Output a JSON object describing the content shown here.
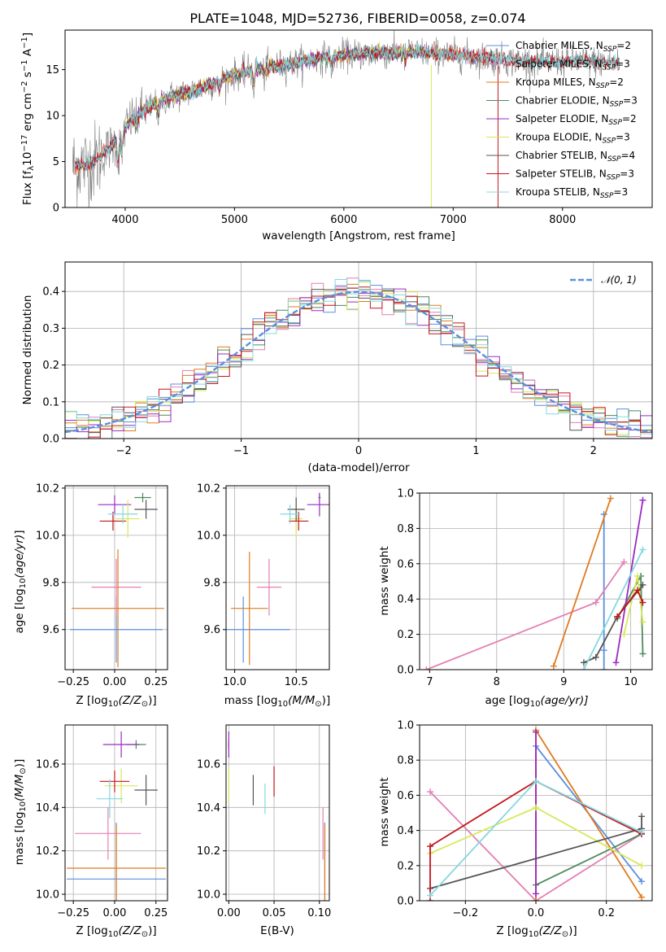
{
  "figure_title": "PLATE=1048, MJD=52736, FIBERID=0058, z=0.074",
  "colors": {
    "Chabrier MILES": "#5b8fde",
    "Salpeter MILES": "#e47fb3",
    "Kroupa MILES": "#e07b1e",
    "Chabrier ELODIE": "#4f8a5b",
    "Salpeter ELODIE": "#9a2bc0",
    "Kroupa ELODIE": "#d7e85a",
    "Chabrier STELIB": "#555555",
    "Salpeter STELIB": "#c3161c",
    "Kroupa STELIB": "#84d8e0",
    "data": "#7f7f7f",
    "gaussian": "#5b8fde",
    "grid": "#b0b0b0"
  },
  "chart_data": [
    {
      "id": "spectrum",
      "type": "line",
      "title": "PLATE=1048, MJD=52736, FIBERID=0058, z=0.074",
      "xlabel": "wavelength [Angstrom, rest frame]",
      "ylabel": "Flux [f",
      "ylabel_sub": "λ",
      "ylabel_rest": "10",
      "ylabel_exp": "−17",
      "ylabel_tail": " erg cm",
      "ylabel_exp2": "−2",
      "ylabel_tail2": " s",
      "ylabel_exp3": "−1",
      "ylabel_tail3": " A",
      "ylabel_exp4": "−1",
      "ylabel_end": "]",
      "xlim": [
        3450,
        8820
      ],
      "ylim": [
        0,
        19.3
      ],
      "xticks": [
        4000,
        5000,
        6000,
        7000,
        8000
      ],
      "yticks": [
        0,
        5,
        10,
        15
      ],
      "grid": false,
      "legend_position": "top-right",
      "data_range": [
        3520,
        8520
      ],
      "continuum_knots": [
        [
          3520,
          4.5
        ],
        [
          3700,
          4.8
        ],
        [
          3900,
          7.0
        ],
        [
          4050,
          9.5
        ],
        [
          4200,
          10.8
        ],
        [
          4400,
          12.0
        ],
        [
          4600,
          12.6
        ],
        [
          4800,
          13.5
        ],
        [
          5000,
          14.5
        ],
        [
          5200,
          15.0
        ],
        [
          5500,
          15.6
        ],
        [
          5800,
          16.3
        ],
        [
          6000,
          16.6
        ],
        [
          6300,
          16.8
        ],
        [
          6600,
          16.9
        ],
        [
          6900,
          16.7
        ],
        [
          7200,
          16.4
        ],
        [
          7500,
          16.0
        ],
        [
          7800,
          15.8
        ],
        [
          8100,
          15.9
        ],
        [
          8400,
          15.8
        ],
        [
          8520,
          15.8
        ]
      ],
      "series": [
        {
          "name": "Chabrier MILES",
          "label_prefix": "Chabrier MILES, N",
          "label_sub": "SSP",
          "label_suffix": "=2"
        },
        {
          "name": "Salpeter MILES",
          "label_prefix": "Salpeter MILES, N",
          "label_sub": "SSP",
          "label_suffix": "=3"
        },
        {
          "name": "Kroupa MILES",
          "label_prefix": "Kroupa MILES, N",
          "label_sub": "SSP",
          "label_suffix": "=2"
        },
        {
          "name": "Chabrier ELODIE",
          "label_prefix": "Chabrier ELODIE, N",
          "label_sub": "SSP",
          "label_suffix": "=3"
        },
        {
          "name": "Salpeter ELODIE",
          "label_prefix": "Salpeter ELODIE, N",
          "label_sub": "SSP",
          "label_suffix": "=2"
        },
        {
          "name": "Kroupa ELODIE",
          "label_prefix": "Kroupa ELODIE, N",
          "label_sub": "SSP",
          "label_suffix": "=3"
        },
        {
          "name": "Chabrier STELIB",
          "label_prefix": "Chabrier STELIB, N",
          "label_sub": "SSP",
          "label_suffix": "=4"
        },
        {
          "name": "Salpeter STELIB",
          "label_prefix": "Salpeter STELIB, N",
          "label_sub": "SSP",
          "label_suffix": "=3"
        },
        {
          "name": "Kroupa STELIB",
          "label_prefix": "Kroupa STELIB, N",
          "label_sub": "SSP",
          "label_suffix": "=3"
        }
      ],
      "model_ranges": {
        "MILES": [
          3540,
          7410
        ],
        "ELODIE": [
          3900,
          6800
        ],
        "STELIB": [
          3540,
          8520
        ]
      }
    },
    {
      "id": "residuals",
      "type": "bar",
      "xlabel": "(data-model)/error",
      "ylabel": "Normed distribution",
      "xlim": [
        -2.5,
        2.5
      ],
      "ylim": [
        0,
        0.48
      ],
      "xticks": [
        -2,
        -1,
        0,
        1,
        2
      ],
      "ytick_values": [
        0.0,
        0.1,
        0.2,
        0.3,
        0.4
      ],
      "ytick_labels": [
        "0.0",
        "0.1",
        "0.2",
        "0.3",
        "0.4"
      ],
      "xtick_labels": [
        "−2",
        "−1",
        "0",
        "1",
        "2"
      ],
      "grid": true,
      "bin_width": 0.1,
      "legend": "𝒩(0, 1)",
      "legend_position": "top-right"
    },
    {
      "id": "age_vs_Z",
      "type": "scatter",
      "xlabel": "Z [log",
      "xlabel_sub": "10",
      "xlabel_rest": "(Z/Z",
      "xlabel_sub2": "⊙",
      "xlabel_end": ")]",
      "ylabel": "age  [log10(age/yr)]",
      "xlim": [
        -0.3,
        0.32
      ],
      "ylim": [
        9.43,
        10.21
      ],
      "xticks": [
        -0.25,
        0,
        0.25
      ],
      "xtick_labels": [
        "−0.25",
        "0.00",
        "0.25"
      ],
      "yticks": [
        9.6,
        9.8,
        10.0,
        10.2
      ],
      "ytick_labels": [
        "9.6",
        "9.8",
        "10.0",
        "10.2"
      ],
      "grid": true,
      "points": [
        {
          "series": "Chabrier MILES",
          "x": 0.01,
          "xerr": 0.28,
          "y": 9.6,
          "yerr": 0.14
        },
        {
          "series": "Salpeter MILES",
          "x": 0.01,
          "xerr": 0.15,
          "y": 9.78,
          "yerr": 0.12
        },
        {
          "series": "Kroupa MILES",
          "x": 0.02,
          "xerr": 0.28,
          "y": 9.69,
          "yerr": 0.25
        },
        {
          "series": "Chabrier ELODIE",
          "x": 0.17,
          "xerr": 0.05,
          "y": 10.16,
          "yerr": 0.02
        },
        {
          "series": "Salpeter ELODIE",
          "x": 0.0,
          "xerr": 0.1,
          "y": 10.13,
          "yerr": 0.04
        },
        {
          "series": "Kroupa ELODIE",
          "x": 0.08,
          "xerr": 0.07,
          "y": 10.07,
          "yerr": 0.08
        },
        {
          "series": "Chabrier STELIB",
          "x": 0.19,
          "xerr": 0.07,
          "y": 10.11,
          "yerr": 0.04
        },
        {
          "series": "Salpeter STELIB",
          "x": -0.01,
          "xerr": 0.08,
          "y": 10.06,
          "yerr": 0.04
        },
        {
          "series": "Kroupa STELIB",
          "x": 0.05,
          "xerr": 0.09,
          "y": 10.09,
          "yerr": 0.04
        }
      ]
    },
    {
      "id": "age_vs_mass",
      "type": "scatter",
      "xlabel": "mass [log",
      "xlabel_sub": "10",
      "xlabel_rest": "(M/M",
      "xlabel_sub2": "⊙",
      "xlabel_end": ")]",
      "xlim": [
        9.93,
        10.77
      ],
      "ylim": [
        9.43,
        10.21
      ],
      "xticks": [
        10.0,
        10.5
      ],
      "xtick_labels": [
        "10.0",
        "10.5"
      ],
      "yticks": [
        9.6,
        9.8,
        10.0,
        10.2
      ],
      "ytick_labels": [
        "9.6",
        "9.8",
        "10.0",
        "10.2"
      ],
      "grid": true,
      "points": [
        {
          "series": "Chabrier MILES",
          "x": 10.07,
          "xerr": 0.38,
          "y": 9.6,
          "yerr": 0.14
        },
        {
          "series": "Salpeter MILES",
          "x": 10.28,
          "xerr": 0.1,
          "y": 9.78,
          "yerr": 0.12
        },
        {
          "series": "Kroupa MILES",
          "x": 10.12,
          "xerr": 0.15,
          "y": 9.69,
          "yerr": 0.24
        },
        {
          "series": "Chabrier ELODIE",
          "x": 10.69,
          "xerr": 0.01,
          "y": 10.16,
          "yerr": 0.02
        },
        {
          "series": "Salpeter ELODIE",
          "x": 10.69,
          "xerr": 0.1,
          "y": 10.13,
          "yerr": 0.05
        },
        {
          "series": "Kroupa ELODIE",
          "x": 10.5,
          "xerr": 0.05,
          "y": 10.07,
          "yerr": 0.08
        },
        {
          "series": "Chabrier STELIB",
          "x": 10.5,
          "xerr": 0.07,
          "y": 10.11,
          "yerr": 0.05
        },
        {
          "series": "Salpeter STELIB",
          "x": 10.52,
          "xerr": 0.08,
          "y": 10.06,
          "yerr": 0.04
        },
        {
          "series": "Kroupa STELIB",
          "x": 10.45,
          "xerr": 0.08,
          "y": 10.09,
          "yerr": 0.04
        }
      ]
    },
    {
      "id": "cumulative_age",
      "type": "line",
      "xlabel": "age  [log",
      "xlabel_sub": "10",
      "xlabel_rest": "(age/yr)]",
      "ylabel": "mass weight",
      "xlim": [
        6.85,
        10.32
      ],
      "ylim": [
        0,
        1
      ],
      "xticks": [
        7,
        8,
        9,
        10
      ],
      "xtick_labels": [
        "7",
        "8",
        "9",
        "10"
      ],
      "yticks": [
        0,
        0.2,
        0.4,
        0.6,
        0.8,
        1.0
      ],
      "ytick_labels": [
        "0.0",
        "0.2",
        "0.4",
        "0.6",
        "0.8",
        "1.0"
      ],
      "grid": true,
      "series": [
        {
          "name": "Chabrier MILES",
          "x": [
            9.6,
            9.6,
            9.6
          ],
          "y": [
            0.0,
            0.11,
            0.88
          ]
        },
        {
          "name": "Salpeter MILES",
          "x": [
            6.95,
            9.48,
            9.9
          ],
          "y": [
            0.0,
            0.38,
            0.61
          ]
        },
        {
          "name": "Kroupa MILES",
          "x": [
            8.85,
            9.7
          ],
          "y": [
            0.02,
            0.97
          ]
        },
        {
          "name": "Chabrier ELODIE",
          "x": [
            9.8,
            10.15,
            10.18
          ],
          "y": [
            0.29,
            0.53,
            0.09
          ]
        },
        {
          "name": "Salpeter ELODIE",
          "x": [
            9.78,
            10.18
          ],
          "y": [
            0.04,
            0.96
          ]
        },
        {
          "name": "Kroupa ELODIE",
          "x": [
            9.9,
            10.1,
            10.18
          ],
          "y": [
            0.2,
            0.53,
            0.27
          ]
        },
        {
          "name": "Chabrier STELIB",
          "x": [
            9.3,
            9.48,
            9.8,
            10.18
          ],
          "y": [
            0.04,
            0.07,
            0.3,
            0.48
          ]
        },
        {
          "name": "Salpeter STELIB",
          "x": [
            9.8,
            10.1,
            10.18
          ],
          "y": [
            0.3,
            0.45,
            0.38
          ]
        },
        {
          "name": "Kroupa STELIB",
          "x": [
            9.3,
            10.18
          ],
          "y": [
            0.0,
            0.68
          ]
        }
      ]
    },
    {
      "id": "mass_vs_Z",
      "type": "scatter",
      "xlabel": "Z [log",
      "xlabel_sub": "10",
      "xlabel_rest": "(Z/Z",
      "xlabel_sub2": "⊙",
      "xlabel_end": ")]",
      "ylabel": "mass [log10(M/M⊙)]",
      "xlim": [
        -0.3,
        0.32
      ],
      "ylim": [
        9.97,
        10.78
      ],
      "xticks": [
        -0.25,
        0,
        0.25
      ],
      "xtick_labels": [
        "−0.25",
        "0.00",
        "0.25"
      ],
      "yticks": [
        10.0,
        10.2,
        10.4,
        10.6
      ],
      "ytick_labels": [
        "10.0",
        "10.2",
        "10.4",
        "10.6"
      ],
      "grid": true,
      "points": [
        {
          "series": "Chabrier MILES",
          "x": 0.01,
          "xerr": 0.3,
          "y": 10.07,
          "yerr": 0.26
        },
        {
          "series": "Salpeter MILES",
          "x": -0.04,
          "xerr": 0.2,
          "y": 10.28,
          "yerr": 0.12
        },
        {
          "series": "Kroupa MILES",
          "x": 0.01,
          "xerr": 0.3,
          "y": 10.12,
          "yerr": 0.2
        },
        {
          "series": "Chabrier ELODIE",
          "x": 0.13,
          "xerr": 0.06,
          "y": 10.69,
          "yerr": 0.02
        },
        {
          "series": "Salpeter ELODIE",
          "x": 0.04,
          "xerr": 0.11,
          "y": 10.69,
          "yerr": 0.06
        },
        {
          "series": "Kroupa ELODIE",
          "x": 0.04,
          "xerr": 0.1,
          "y": 10.5,
          "yerr": 0.08
        },
        {
          "series": "Chabrier STELIB",
          "x": 0.19,
          "xerr": 0.07,
          "y": 10.48,
          "yerr": 0.07
        },
        {
          "series": "Salpeter STELIB",
          "x": 0.0,
          "xerr": 0.09,
          "y": 10.52,
          "yerr": 0.05
        },
        {
          "series": "Kroupa STELIB",
          "x": -0.03,
          "xerr": 0.08,
          "y": 10.44,
          "yerr": 0.09
        }
      ]
    },
    {
      "id": "mass_vs_ebv",
      "type": "scatter",
      "xlabel": "E(B-V)",
      "xlim": [
        -0.003,
        0.111
      ],
      "ylim": [
        9.97,
        10.78
      ],
      "xticks": [
        0.0,
        0.05,
        0.1
      ],
      "xtick_labels": [
        "0.00",
        "0.05",
        "0.10"
      ],
      "yticks": [
        10.0,
        10.2,
        10.4,
        10.6
      ],
      "ytick_labels": [
        "10.0",
        "10.2",
        "10.4",
        "10.6"
      ],
      "grid": true,
      "points": [
        {
          "series": "Chabrier MILES",
          "x": 0.106,
          "y": 10.07,
          "yerr": 0.26
        },
        {
          "series": "Salpeter MILES",
          "x": 0.104,
          "y": 10.28,
          "yerr": 0.12
        },
        {
          "series": "Kroupa MILES",
          "x": 0.106,
          "y": 10.12,
          "yerr": 0.2
        },
        {
          "series": "Chabrier ELODIE",
          "x": 0.0,
          "y": 10.69,
          "yerr": 0.02
        },
        {
          "series": "Salpeter ELODIE",
          "x": 0.0,
          "y": 10.69,
          "yerr": 0.06
        },
        {
          "series": "Kroupa ELODIE",
          "x": 0.0,
          "y": 10.5,
          "yerr": 0.08
        },
        {
          "series": "Chabrier STELIB",
          "x": 0.027,
          "y": 10.48,
          "yerr": 0.07
        },
        {
          "series": "Salpeter STELIB",
          "x": 0.05,
          "y": 10.52,
          "yerr": 0.07
        },
        {
          "series": "Kroupa STELIB",
          "x": 0.04,
          "y": 10.44,
          "yerr": 0.07
        }
      ]
    },
    {
      "id": "cumulative_Z",
      "type": "line",
      "xlabel": "Z [log",
      "xlabel_sub": "10",
      "xlabel_rest": "(Z/Z",
      "xlabel_sub2": "⊙",
      "xlabel_end": ")]",
      "ylabel": "mass weight",
      "xlim": [
        -0.33,
        0.33
      ],
      "ylim": [
        0,
        1
      ],
      "xticks": [
        -0.2,
        0.0,
        0.2
      ],
      "xtick_labels": [
        "−0.2",
        "0.0",
        "0.2"
      ],
      "yticks": [
        0,
        0.2,
        0.4,
        0.6,
        0.8,
        1.0
      ],
      "ytick_labels": [
        "0.0",
        "0.2",
        "0.4",
        "0.6",
        "0.8",
        "1.0"
      ],
      "grid": true,
      "series": [
        {
          "name": "Chabrier MILES",
          "x": [
            0.0,
            0.0,
            0.3
          ],
          "y": [
            0.0,
            0.88,
            0.11
          ]
        },
        {
          "name": "Salpeter MILES",
          "x": [
            -0.3,
            0.0,
            0.3
          ],
          "y": [
            0.62,
            0.0,
            0.38
          ]
        },
        {
          "name": "Kroupa MILES",
          "x": [
            0.0,
            0.0,
            0.3
          ],
          "y": [
            0.0,
            0.97,
            0.02
          ]
        },
        {
          "name": "Chabrier ELODIE",
          "x": [
            0.0,
            0.3
          ],
          "y": [
            0.09,
            0.38
          ]
        },
        {
          "name": "Salpeter ELODIE",
          "x": [
            0.0,
            0.0
          ],
          "y": [
            0.04,
            0.96
          ]
        },
        {
          "name": "Kroupa ELODIE",
          "x": [
            -0.3,
            0.0,
            0.3
          ],
          "y": [
            0.27,
            0.53,
            0.2
          ]
        },
        {
          "name": "Chabrier STELIB",
          "x": [
            -0.3,
            0.3,
            0.3
          ],
          "y": [
            0.07,
            0.41,
            0.48
          ]
        },
        {
          "name": "Salpeter STELIB",
          "x": [
            -0.3,
            -0.3,
            0.0,
            0.3
          ],
          "y": [
            0.0,
            0.31,
            0.68,
            0.38
          ]
        },
        {
          "name": "Kroupa STELIB",
          "x": [
            -0.3,
            0.0,
            0.3
          ],
          "y": [
            0.03,
            0.68,
            0.39
          ]
        }
      ]
    }
  ]
}
